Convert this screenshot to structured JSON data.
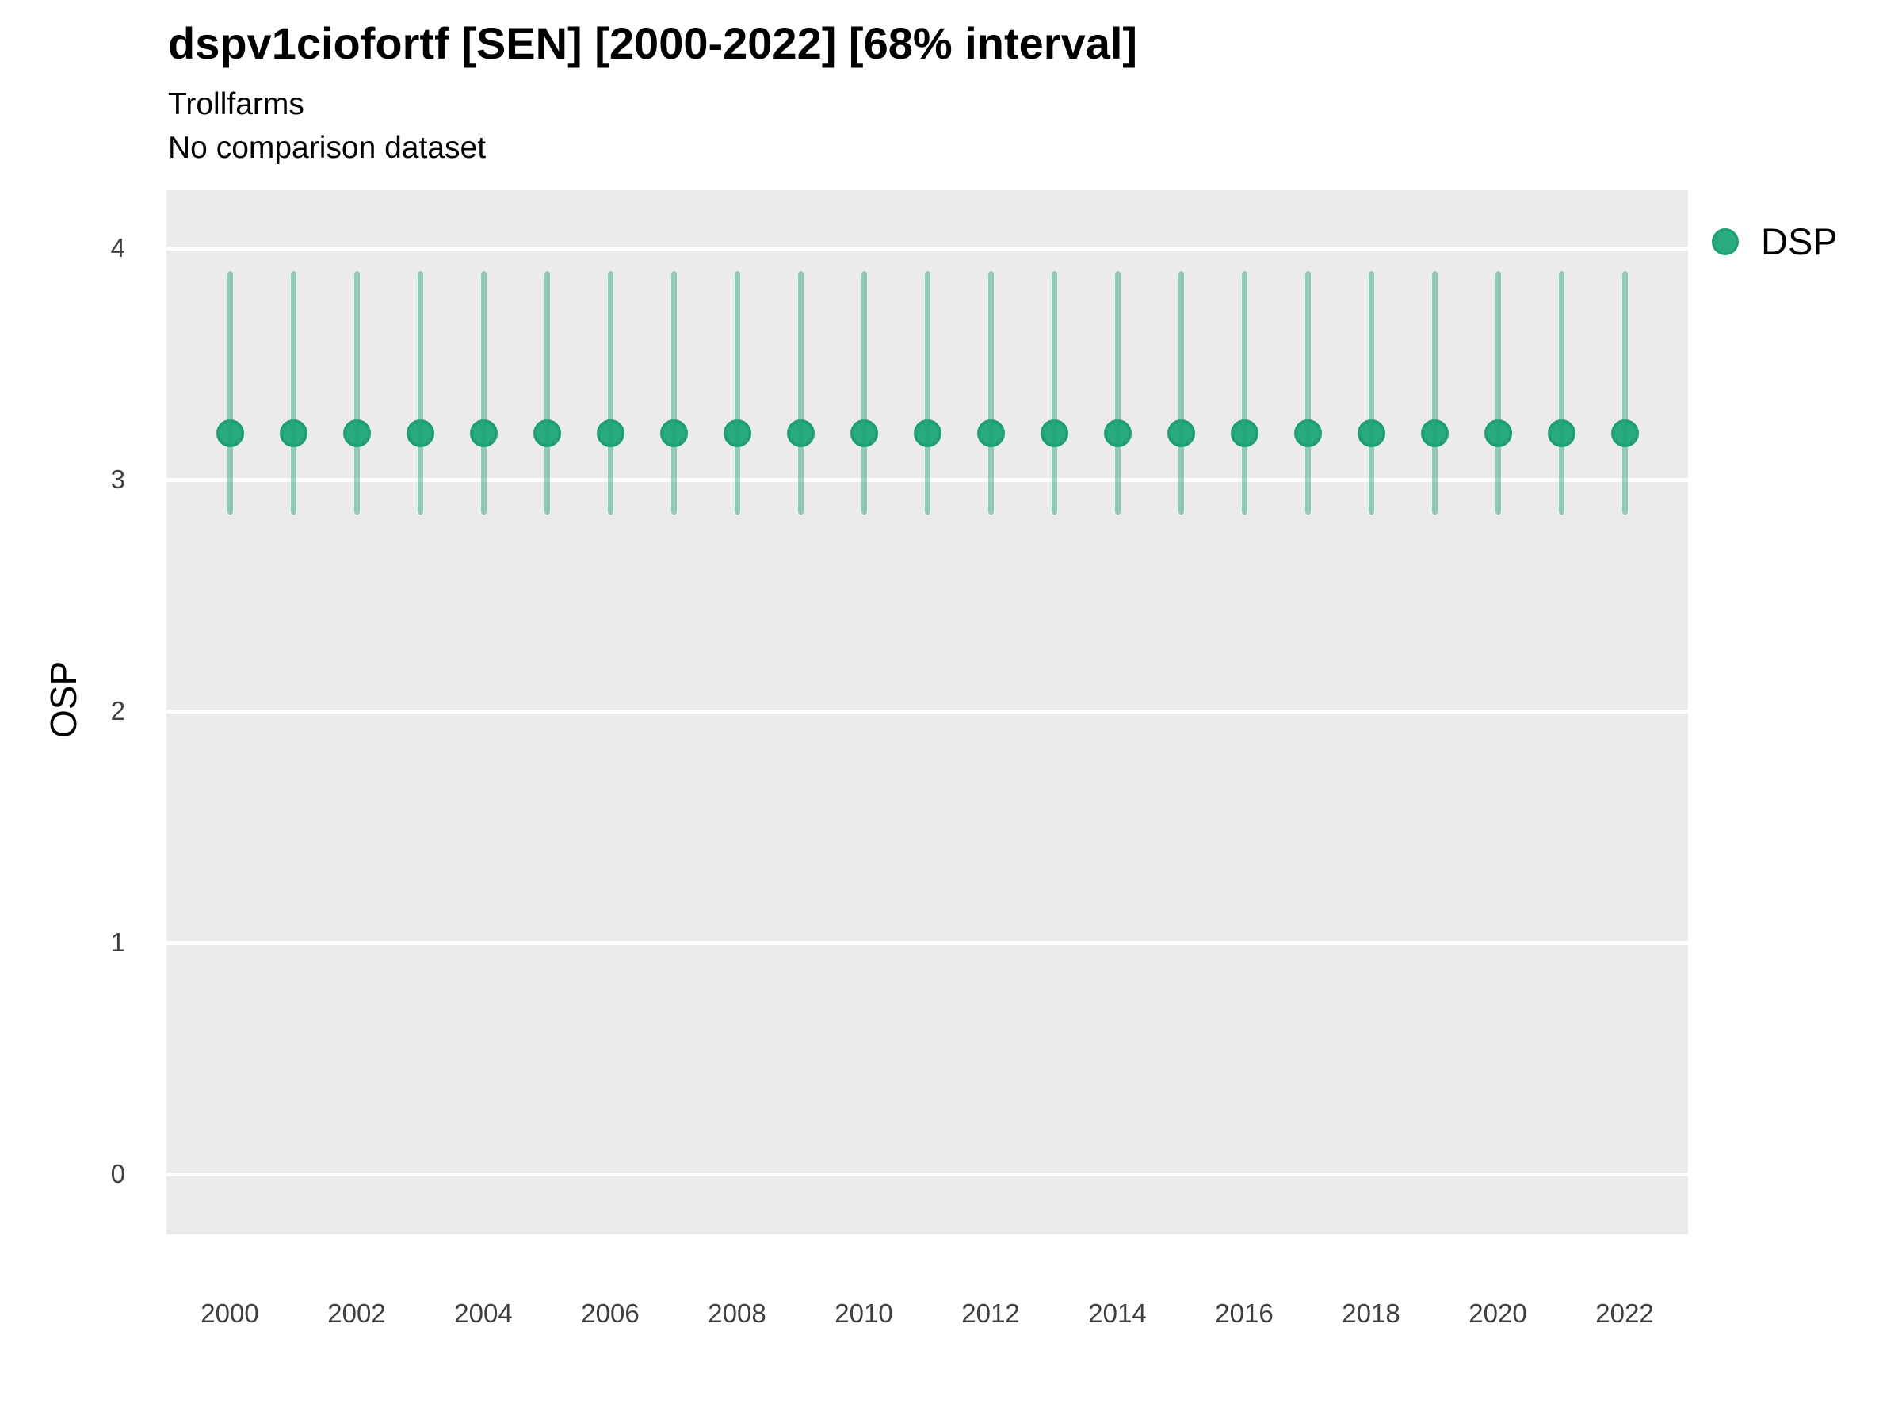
{
  "header": {
    "title": "dspv1ciofortf [SEN] [2000-2022] [68% interval]",
    "subtitle": "Trollfarms",
    "note": "No comparison dataset"
  },
  "y_axis": {
    "label": "OSP",
    "ticks": [
      4,
      3,
      2,
      1,
      0
    ]
  },
  "x_axis": {
    "ticks": [
      2000,
      2002,
      2004,
      2006,
      2008,
      2010,
      2012,
      2014,
      2016,
      2018,
      2020,
      2022
    ]
  },
  "legend": {
    "position": "right",
    "items": [
      {
        "label": "DSP",
        "color": "#2aab7f"
      }
    ]
  },
  "colors": {
    "panel_background": "#ebebeb",
    "gridline": "#ffffff",
    "point_fill": "#2aab7f",
    "point_stroke": "#1fa074",
    "interval_bar": "rgba(31,161,118,0.45)",
    "tick_text": "#3f3f3f",
    "title_text": "#000000"
  },
  "chart_data": {
    "type": "pointrange",
    "title": "dspv1ciofortf [SEN] [2000-2022] [68% interval]",
    "subtitle": "Trollfarms",
    "note": "No comparison dataset",
    "interval_label": "68% interval",
    "xlabel": "",
    "ylabel": "OSP",
    "xlim": [
      1999,
      2023
    ],
    "ylim": [
      -0.26,
      4.25
    ],
    "yticks": [
      0,
      1,
      2,
      3,
      4
    ],
    "grid": "major-horizontal-only",
    "legend_position": "right",
    "series": [
      {
        "name": "DSP",
        "points": [
          {
            "x": 2000,
            "y": 3.2,
            "lower": 2.85,
            "upper": 3.9
          },
          {
            "x": 2001,
            "y": 3.2,
            "lower": 2.85,
            "upper": 3.9
          },
          {
            "x": 2002,
            "y": 3.2,
            "lower": 2.85,
            "upper": 3.9
          },
          {
            "x": 2003,
            "y": 3.2,
            "lower": 2.85,
            "upper": 3.9
          },
          {
            "x": 2004,
            "y": 3.2,
            "lower": 2.85,
            "upper": 3.9
          },
          {
            "x": 2005,
            "y": 3.2,
            "lower": 2.85,
            "upper": 3.9
          },
          {
            "x": 2006,
            "y": 3.2,
            "lower": 2.85,
            "upper": 3.9
          },
          {
            "x": 2007,
            "y": 3.2,
            "lower": 2.85,
            "upper": 3.9
          },
          {
            "x": 2008,
            "y": 3.2,
            "lower": 2.85,
            "upper": 3.9
          },
          {
            "x": 2009,
            "y": 3.2,
            "lower": 2.85,
            "upper": 3.9
          },
          {
            "x": 2010,
            "y": 3.2,
            "lower": 2.85,
            "upper": 3.9
          },
          {
            "x": 2011,
            "y": 3.2,
            "lower": 2.85,
            "upper": 3.9
          },
          {
            "x": 2012,
            "y": 3.2,
            "lower": 2.85,
            "upper": 3.9
          },
          {
            "x": 2013,
            "y": 3.2,
            "lower": 2.85,
            "upper": 3.9
          },
          {
            "x": 2014,
            "y": 3.2,
            "lower": 2.85,
            "upper": 3.9
          },
          {
            "x": 2015,
            "y": 3.2,
            "lower": 2.85,
            "upper": 3.9
          },
          {
            "x": 2016,
            "y": 3.2,
            "lower": 2.85,
            "upper": 3.9
          },
          {
            "x": 2017,
            "y": 3.2,
            "lower": 2.85,
            "upper": 3.9
          },
          {
            "x": 2018,
            "y": 3.2,
            "lower": 2.85,
            "upper": 3.9
          },
          {
            "x": 2019,
            "y": 3.2,
            "lower": 2.85,
            "upper": 3.9
          },
          {
            "x": 2020,
            "y": 3.2,
            "lower": 2.85,
            "upper": 3.9
          },
          {
            "x": 2021,
            "y": 3.2,
            "lower": 2.85,
            "upper": 3.9
          },
          {
            "x": 2022,
            "y": 3.2,
            "lower": 2.85,
            "upper": 3.9
          }
        ]
      }
    ]
  }
}
